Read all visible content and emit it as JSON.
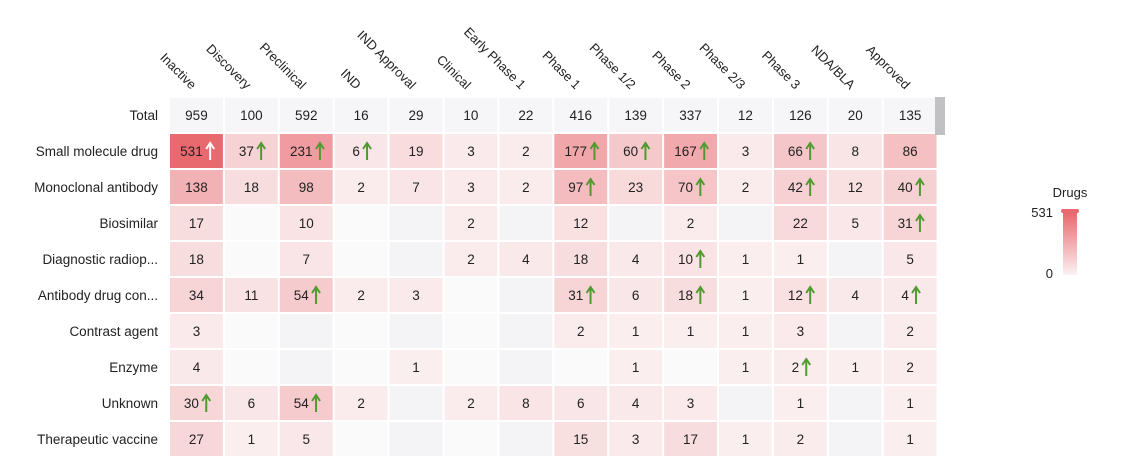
{
  "chart_data": {
    "type": "heatmap",
    "columns": [
      "Inactive",
      "Discovery",
      "Preclinical",
      "IND",
      "IND Approval",
      "Clinical",
      "Early Phase 1",
      "Phase 1",
      "Phase 1/2",
      "Phase 2",
      "Phase 2/3",
      "Phase 3",
      "NDA/BLA",
      "Approved"
    ],
    "rows": [
      {
        "label": "Total",
        "is_total": true,
        "values": [
          959,
          100,
          592,
          16,
          29,
          10,
          22,
          416,
          139,
          337,
          12,
          126,
          20,
          135
        ],
        "trend_up": []
      },
      {
        "label": "Small molecule drug",
        "values": [
          531,
          37,
          231,
          6,
          19,
          3,
          2,
          177,
          60,
          167,
          3,
          66,
          8,
          86
        ],
        "trend_up": [
          0,
          1,
          2,
          3,
          7,
          8,
          9,
          11
        ]
      },
      {
        "label": "Monoclonal antibody",
        "values": [
          138,
          18,
          98,
          2,
          7,
          3,
          2,
          97,
          23,
          70,
          2,
          42,
          12,
          40
        ],
        "trend_up": [
          7,
          9,
          11,
          13
        ]
      },
      {
        "label": "Biosimilar",
        "values": [
          17,
          null,
          10,
          null,
          null,
          2,
          null,
          12,
          null,
          2,
          null,
          22,
          5,
          31
        ],
        "trend_up": [
          13
        ]
      },
      {
        "label": "Diagnostic radiop...",
        "values": [
          18,
          null,
          7,
          null,
          null,
          2,
          4,
          18,
          4,
          10,
          1,
          1,
          null,
          5
        ],
        "trend_up": [
          9
        ]
      },
      {
        "label": "Antibody drug con...",
        "values": [
          34,
          11,
          54,
          2,
          3,
          null,
          null,
          31,
          6,
          18,
          1,
          12,
          4,
          4
        ],
        "trend_up": [
          2,
          7,
          9,
          11,
          13
        ]
      },
      {
        "label": "Contrast agent",
        "values": [
          3,
          null,
          null,
          null,
          null,
          null,
          null,
          2,
          1,
          1,
          1,
          3,
          null,
          2
        ],
        "trend_up": []
      },
      {
        "label": "Enzyme",
        "values": [
          4,
          null,
          null,
          null,
          1,
          null,
          null,
          null,
          1,
          null,
          1,
          2,
          1,
          2
        ],
        "trend_up": [
          11
        ]
      },
      {
        "label": "Unknown",
        "values": [
          30,
          6,
          54,
          2,
          null,
          2,
          8,
          6,
          4,
          3,
          null,
          1,
          null,
          1
        ],
        "trend_up": [
          0,
          2
        ]
      },
      {
        "label": "Therapeutic vaccine",
        "values": [
          27,
          1,
          5,
          null,
          null,
          null,
          null,
          15,
          3,
          17,
          1,
          2,
          null,
          1
        ],
        "trend_up": []
      }
    ],
    "legend": {
      "title": "Drugs",
      "max": 531,
      "min": 0,
      "placement": "right"
    },
    "colors": {
      "high": "#e8696e",
      "low": "#fbf2f3",
      "empty_a": "#fafafa",
      "empty_b": "#f4f4f6",
      "total_bg": "#f6f6f8",
      "arrow": "#4f9a2f",
      "grid": "#ffffff"
    }
  }
}
